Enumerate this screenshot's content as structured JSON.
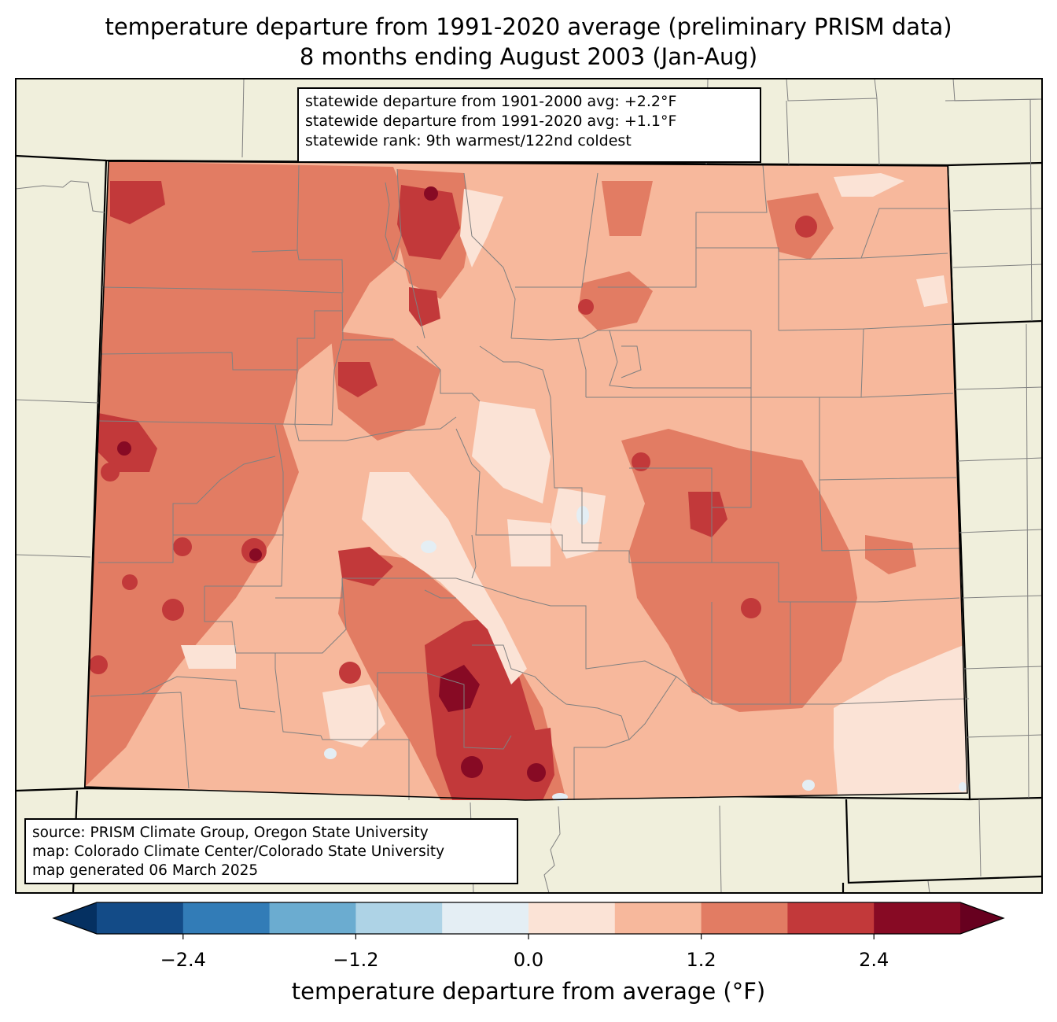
{
  "title_line1": "temperature departure from 1991-2020 average (preliminary PRISM data)",
  "title_line2": "8 months ending August 2003 (Jan-Aug)",
  "stats": [
    "statewide departure from 1901-2000 avg: +2.2°F",
    "statewide departure from 1991-2020 avg: +1.1°F",
    "statewide rank: 9th warmest/122nd coldest"
  ],
  "source": [
    "source: PRISM Climate Group, Oregon State University",
    "map: Colorado Climate Center/Colorado State University",
    "map generated 06 March 2025"
  ],
  "colorbar": {
    "label": "temperature departure from average (°F)",
    "ticks": [
      "−2.4",
      "−1.2",
      "0.0",
      "1.2",
      "2.4"
    ],
    "tick_values": [
      -2.4,
      -1.2,
      0.0,
      1.2,
      2.4
    ],
    "bins": [
      -3.0,
      -2.4,
      -1.8,
      -1.2,
      -0.6,
      0.0,
      0.6,
      1.2,
      1.8,
      2.4,
      3.0
    ],
    "colors": [
      "#053061",
      "#134b87",
      "#327cb7",
      "#6bacd0",
      "#aed3e6",
      "#e4eef4",
      "#fbe3d6",
      "#f7b89c",
      "#e27c63",
      "#c2393a",
      "#870a24",
      "#67001f"
    ],
    "extend": "both"
  },
  "map_colors": {
    "background": "#f0efdc",
    "state_border": "#000000",
    "county_lines": "#808080"
  }
}
